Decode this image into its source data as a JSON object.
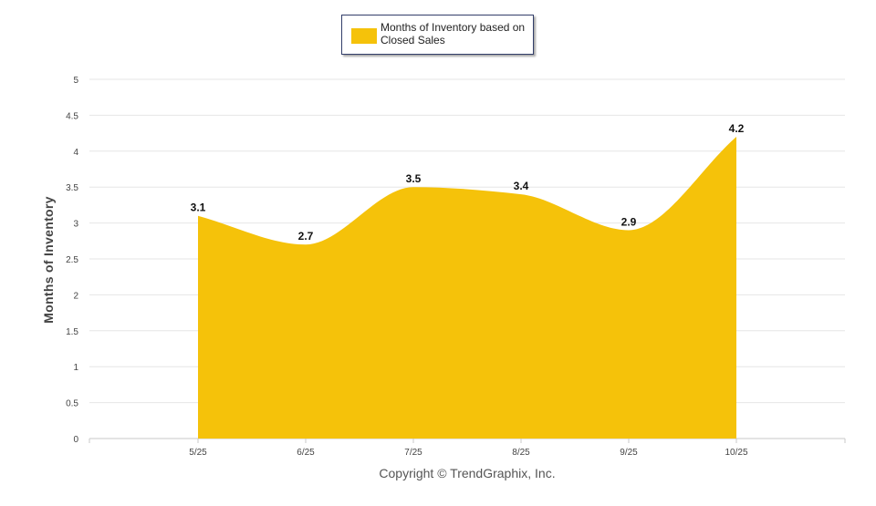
{
  "chart_data": {
    "type": "area",
    "categories": [
      "5/25",
      "6/25",
      "7/25",
      "8/25",
      "9/25",
      "10/25"
    ],
    "series": [
      {
        "name": "Months of Inventory based on Closed Sales",
        "values": [
          3.1,
          2.7,
          3.5,
          3.4,
          2.9,
          4.2
        ]
      }
    ],
    "data_labels": [
      "3.1",
      "2.7",
      "3.5",
      "3.4",
      "2.9",
      "4.2"
    ],
    "ylabel": "Months of Inventory",
    "ylim": [
      0,
      5
    ],
    "y_ticks": [
      "0",
      "0.5",
      "1",
      "1.5",
      "2",
      "2.5",
      "3",
      "3.5",
      "4",
      "4.5",
      "5"
    ],
    "grid": true,
    "legend_position": "top-center",
    "smooth": true,
    "colors": {
      "fill": "#f5c20a",
      "grid": "#e6e6e6",
      "axis": "#c8c8c8",
      "text": "#444444"
    }
  },
  "footer": {
    "copyright": "Copyright © TrendGraphix, Inc."
  }
}
